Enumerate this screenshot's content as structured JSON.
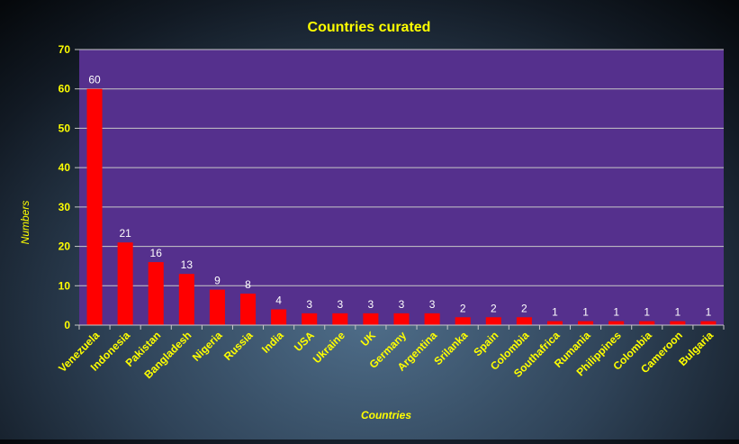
{
  "colors": {
    "title": "#ffff00",
    "plot_background": "#55308d",
    "bar": "#ff0000",
    "grid": "#c8c8c8",
    "axis_text": "#ffff00",
    "data_label": "#ffffff"
  },
  "chart_data": {
    "type": "bar",
    "title": "Countries curated",
    "xlabel": "Countries",
    "ylabel": "Numbers",
    "categories": [
      "Venezuela",
      "Indonesia",
      "Pakistan",
      "Bangladesh",
      "Nigeria",
      "Russia",
      "India",
      "USA",
      "Ukraine",
      "UK",
      "Germany",
      "Argentina",
      "Srilanka",
      "Spain",
      "Colombia",
      "Southafrica",
      "Rumania",
      "Philippines",
      "Colombia",
      "Cameroon",
      "Bulgaria"
    ],
    "values": [
      60,
      21,
      16,
      13,
      9,
      8,
      4,
      3,
      3,
      3,
      3,
      3,
      2,
      2,
      2,
      1,
      1,
      1,
      1,
      1,
      1
    ],
    "ylim": [
      0,
      70
    ],
    "yticks": [
      0,
      10,
      20,
      30,
      40,
      50,
      60,
      70
    ],
    "grid": true,
    "data_labels": true,
    "legend": "none"
  }
}
